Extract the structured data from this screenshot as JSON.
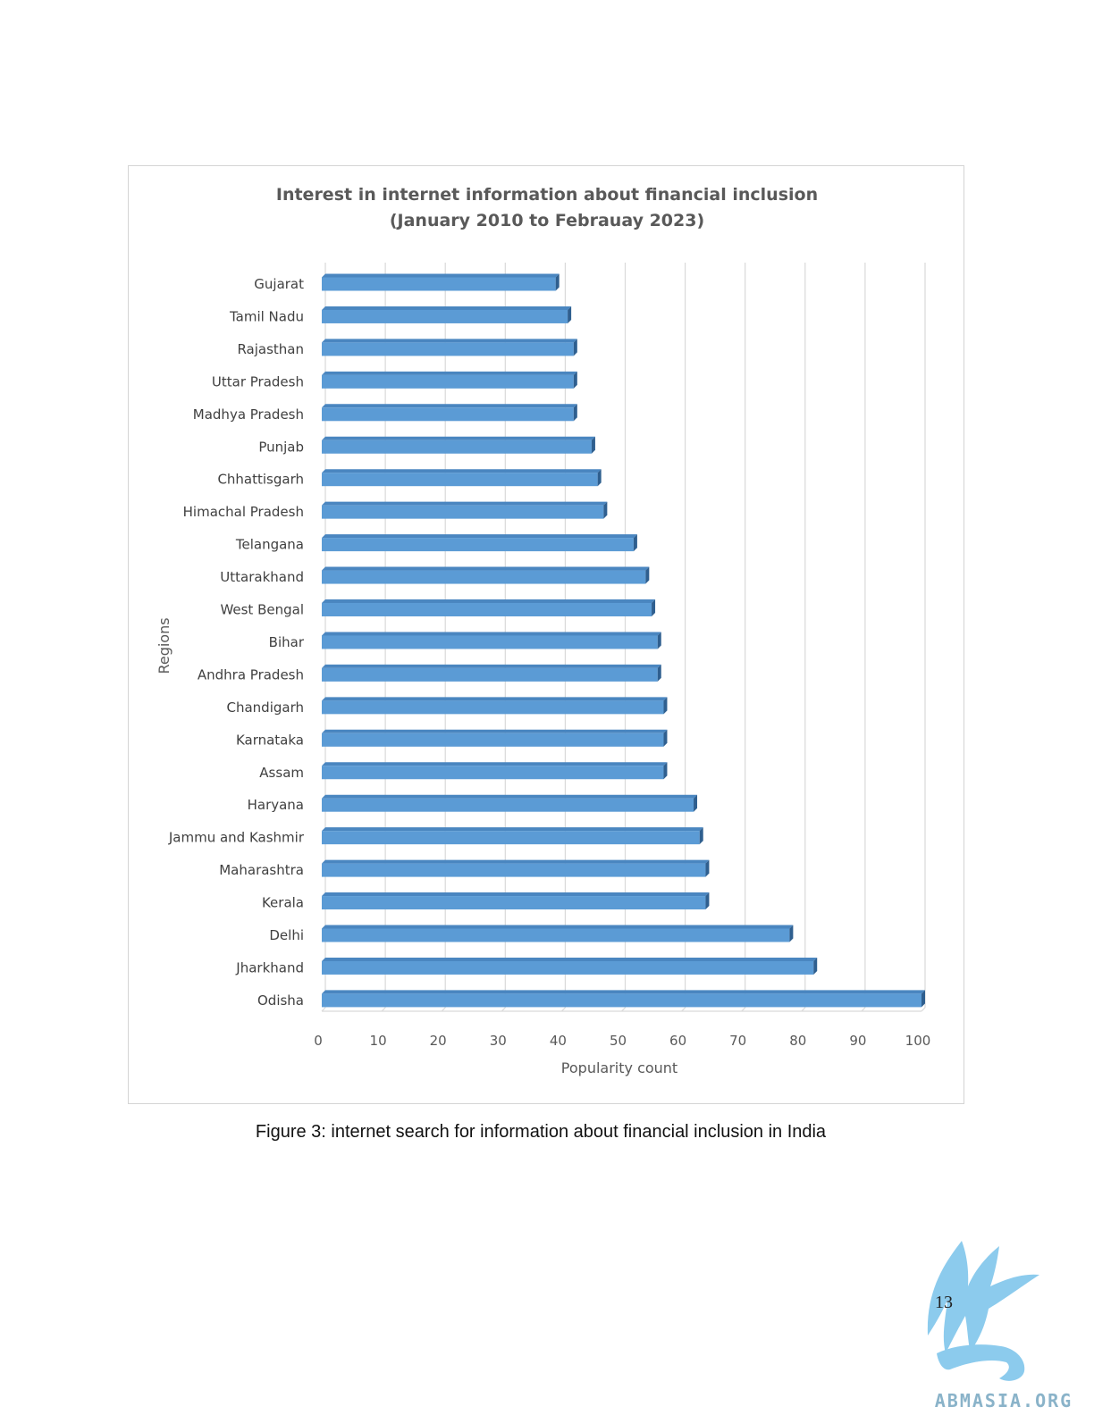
{
  "chart_data": {
    "type": "bar",
    "orientation": "horizontal",
    "title": [
      "Interest in internet information about financial inclusion",
      "(January 2010 to Febrauay 2023)"
    ],
    "xlabel": "Popularity count",
    "ylabel": "Regions",
    "xlim": [
      0,
      100
    ],
    "xticks": [
      "0",
      "10",
      "20",
      "30",
      "40",
      "50",
      "60",
      "70",
      "80",
      "90",
      "100"
    ],
    "grid": "vertical",
    "bar_color": "#5b9bd5",
    "categories": [
      "Gujarat",
      "Tamil Nadu",
      "Rajasthan",
      "Uttar Pradesh",
      "Madhya Pradesh",
      "Punjab",
      "Chhattisgarh",
      "Himachal Pradesh",
      "Telangana",
      "Uttarakhand",
      "West Bengal",
      "Bihar",
      "Andhra Pradesh",
      "Chandigarh",
      "Karnataka",
      "Assam",
      "Haryana",
      "Jammu and Kashmir",
      "Maharashtra",
      "Kerala",
      "Delhi",
      "Jharkhand",
      "Odisha"
    ],
    "values": [
      39,
      41,
      42,
      42,
      42,
      45,
      46,
      47,
      52,
      54,
      55,
      56,
      56,
      57,
      57,
      57,
      62,
      63,
      64,
      64,
      78,
      82,
      100
    ]
  },
  "caption": "Figure 3: internet search for information about financial inclusion in India",
  "page_number": "13",
  "logo": {
    "name": "abmasia-logo",
    "text": "ABMASIA.ORG",
    "color": "#7cc3e8"
  }
}
